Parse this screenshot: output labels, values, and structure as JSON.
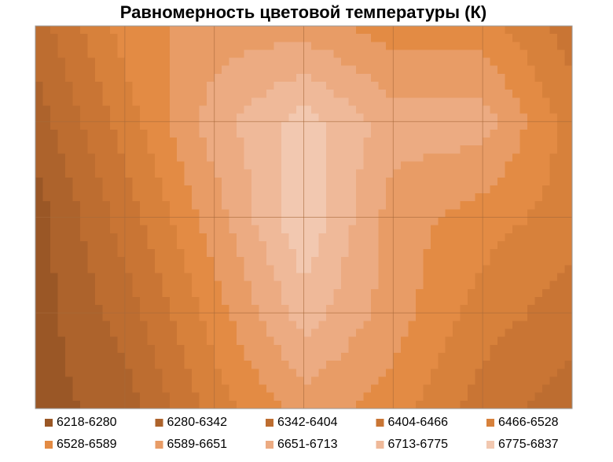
{
  "chart_data": {
    "type": "contour",
    "title": "Равномерность цветовой температуры (К)",
    "levels": [
      6218,
      6280,
      6342,
      6404,
      6466,
      6528,
      6589,
      6651,
      6713,
      6775,
      6837
    ],
    "series": [
      {
        "name": "6218-6280",
        "color": "#9a5726"
      },
      {
        "name": "6280-6342",
        "color": "#ad632c"
      },
      {
        "name": "6342-6404",
        "color": "#bd6d30"
      },
      {
        "name": "6404-6466",
        "color": "#c97534"
      },
      {
        "name": "6466-6528",
        "color": "#d7813b"
      },
      {
        "name": "6528-6589",
        "color": "#e38b44"
      },
      {
        "name": "6589-6651",
        "color": "#e89c66"
      },
      {
        "name": "6651-6713",
        "color": "#ecab82"
      },
      {
        "name": "6713-6775",
        "color": "#efb999"
      },
      {
        "name": "6775-6837",
        "color": "#f2c8b0"
      }
    ],
    "z": [
      [
        6373,
        6559,
        6620,
        6620,
        6559,
        6559,
        6435
      ],
      [
        6311,
        6497,
        6682,
        6806,
        6682,
        6682,
        6497
      ],
      [
        6249,
        6435,
        6620,
        6830,
        6620,
        6559,
        6497
      ],
      [
        6249,
        6373,
        6559,
        6744,
        6620,
        6497,
        6435
      ],
      [
        6249,
        6311,
        6497,
        6620,
        6559,
        6435,
        6373
      ]
    ]
  }
}
